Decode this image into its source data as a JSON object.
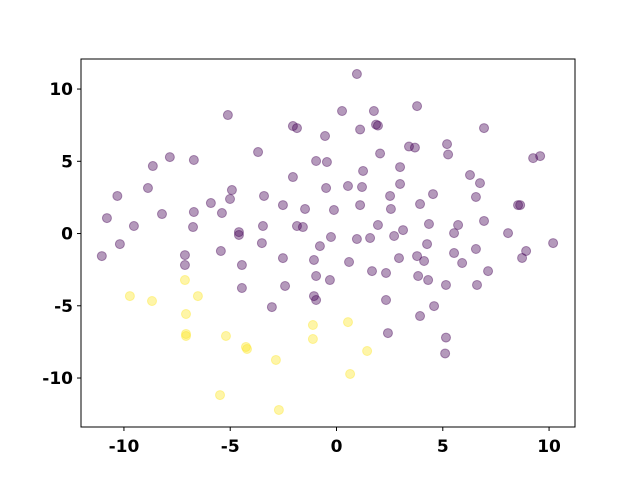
{
  "chart_data": {
    "type": "scatter",
    "xlim": [
      -12.02,
      11.22
    ],
    "ylim": [
      -13.39,
      12.08
    ],
    "xticks": [
      -10,
      -5,
      0,
      5,
      10
    ],
    "yticks": [
      -10,
      -5,
      0,
      5,
      10
    ],
    "alpha": 0.4,
    "series": [
      {
        "color": "#440154",
        "x": [
          0.96,
          0.26,
          1.76,
          3.79,
          -5.11,
          -2.05,
          -1.86,
          1.11,
          1.86,
          1.95,
          -0.54,
          6.94,
          3.41,
          3.69,
          5.2,
          -3.69,
          -7.84,
          -8.64,
          -6.71,
          5.25,
          2.05,
          2.99,
          1.25,
          -0.45,
          -0.96,
          -2.05,
          -0.49,
          0.54,
          9.25,
          9.58,
          6.28,
          6.75,
          6.56,
          2.99,
          2.52,
          1.2,
          -4.92,
          -10.31,
          -8.87,
          -8.21,
          -3.41,
          -5.01,
          -2.52,
          -1.48,
          -0.12,
          1.11,
          2.56,
          4.54,
          3.93,
          8.54,
          8.64,
          -5.91,
          -6.71,
          -5.39,
          -4.59,
          -4.59,
          -3.46,
          -1.86,
          -1.58,
          1.95,
          3.13,
          2.71,
          4.35,
          5.72,
          5.53,
          6.94,
          -10.8,
          -9.53,
          -10.19,
          -11.04,
          -6.75,
          -0.26,
          0.96,
          1.58,
          -0.78,
          -3.51,
          4.26,
          8.07,
          10.19,
          8.92,
          8.73,
          -7.13,
          -7.13,
          -5.44,
          -2.52,
          -1.06,
          0.59,
          1.67,
          2.33,
          2.94,
          3.79,
          4.12,
          3.84,
          4.31,
          5.53,
          5.91,
          6.56,
          7.13,
          -4.45,
          -0.96,
          -0.31,
          -1.06,
          -0.96,
          2.33,
          -4.45,
          -2.42,
          3.93,
          4.59,
          6.61,
          5.15,
          -3.04,
          2.42,
          5.15,
          5.11
        ],
        "y": [
          11.04,
          8.48,
          8.48,
          8.82,
          8.2,
          7.44,
          7.3,
          7.2,
          7.54,
          7.47,
          6.75,
          7.3,
          6.02,
          5.95,
          6.19,
          5.64,
          5.29,
          4.67,
          5.09,
          5.47,
          5.54,
          4.6,
          4.33,
          4.95,
          5.02,
          3.91,
          3.15,
          3.29,
          5.22,
          5.36,
          4.05,
          3.49,
          2.53,
          3.43,
          2.6,
          3.22,
          3.01,
          2.6,
          3.15,
          1.35,
          2.6,
          2.39,
          1.97,
          1.7,
          1.63,
          1.97,
          1.7,
          2.73,
          2.04,
          1.97,
          1.97,
          2.11,
          1.49,
          1.42,
          0.1,
          -0.1,
          0.52,
          0.52,
          0.45,
          0.59,
          0.24,
          -0.17,
          0.66,
          0.59,
          0.03,
          0.87,
          1.07,
          0.52,
          -0.73,
          -1.56,
          0.45,
          -0.24,
          -0.38,
          -0.31,
          -0.87,
          -0.66,
          -0.73,
          0.03,
          -0.66,
          -1.21,
          -1.69,
          -1.49,
          -2.18,
          -1.21,
          -1.7,
          -1.83,
          -1.97,
          -2.6,
          -2.73,
          -1.7,
          -1.56,
          -1.9,
          -2.94,
          -3.22,
          -1.35,
          -2.04,
          -1.07,
          -2.6,
          -2.18,
          -2.94,
          -3.22,
          -4.33,
          -4.6,
          -4.6,
          -3.77,
          -3.63,
          -5.71,
          -5.02,
          -3.56,
          -3.56,
          -5.09,
          -6.89,
          -7.2,
          -8.3
        ]
      },
      {
        "color": "#fde725",
        "x": [
          -9.72,
          -8.68,
          -7.13,
          -6.52,
          -7.08,
          -7.08,
          -7.08,
          -5.2,
          -4.26,
          -4.21,
          -1.11,
          0.54,
          -1.11,
          1.44,
          0.64,
          -2.85,
          -5.48,
          -2.71
        ],
        "y": [
          -4.33,
          -4.67,
          -3.22,
          -4.33,
          -5.57,
          -6.95,
          -7.09,
          -7.09,
          -7.85,
          -7.99,
          -6.33,
          -6.13,
          -7.3,
          -8.13,
          -9.72,
          -8.75,
          -11.18,
          -12.21
        ]
      }
    ]
  }
}
